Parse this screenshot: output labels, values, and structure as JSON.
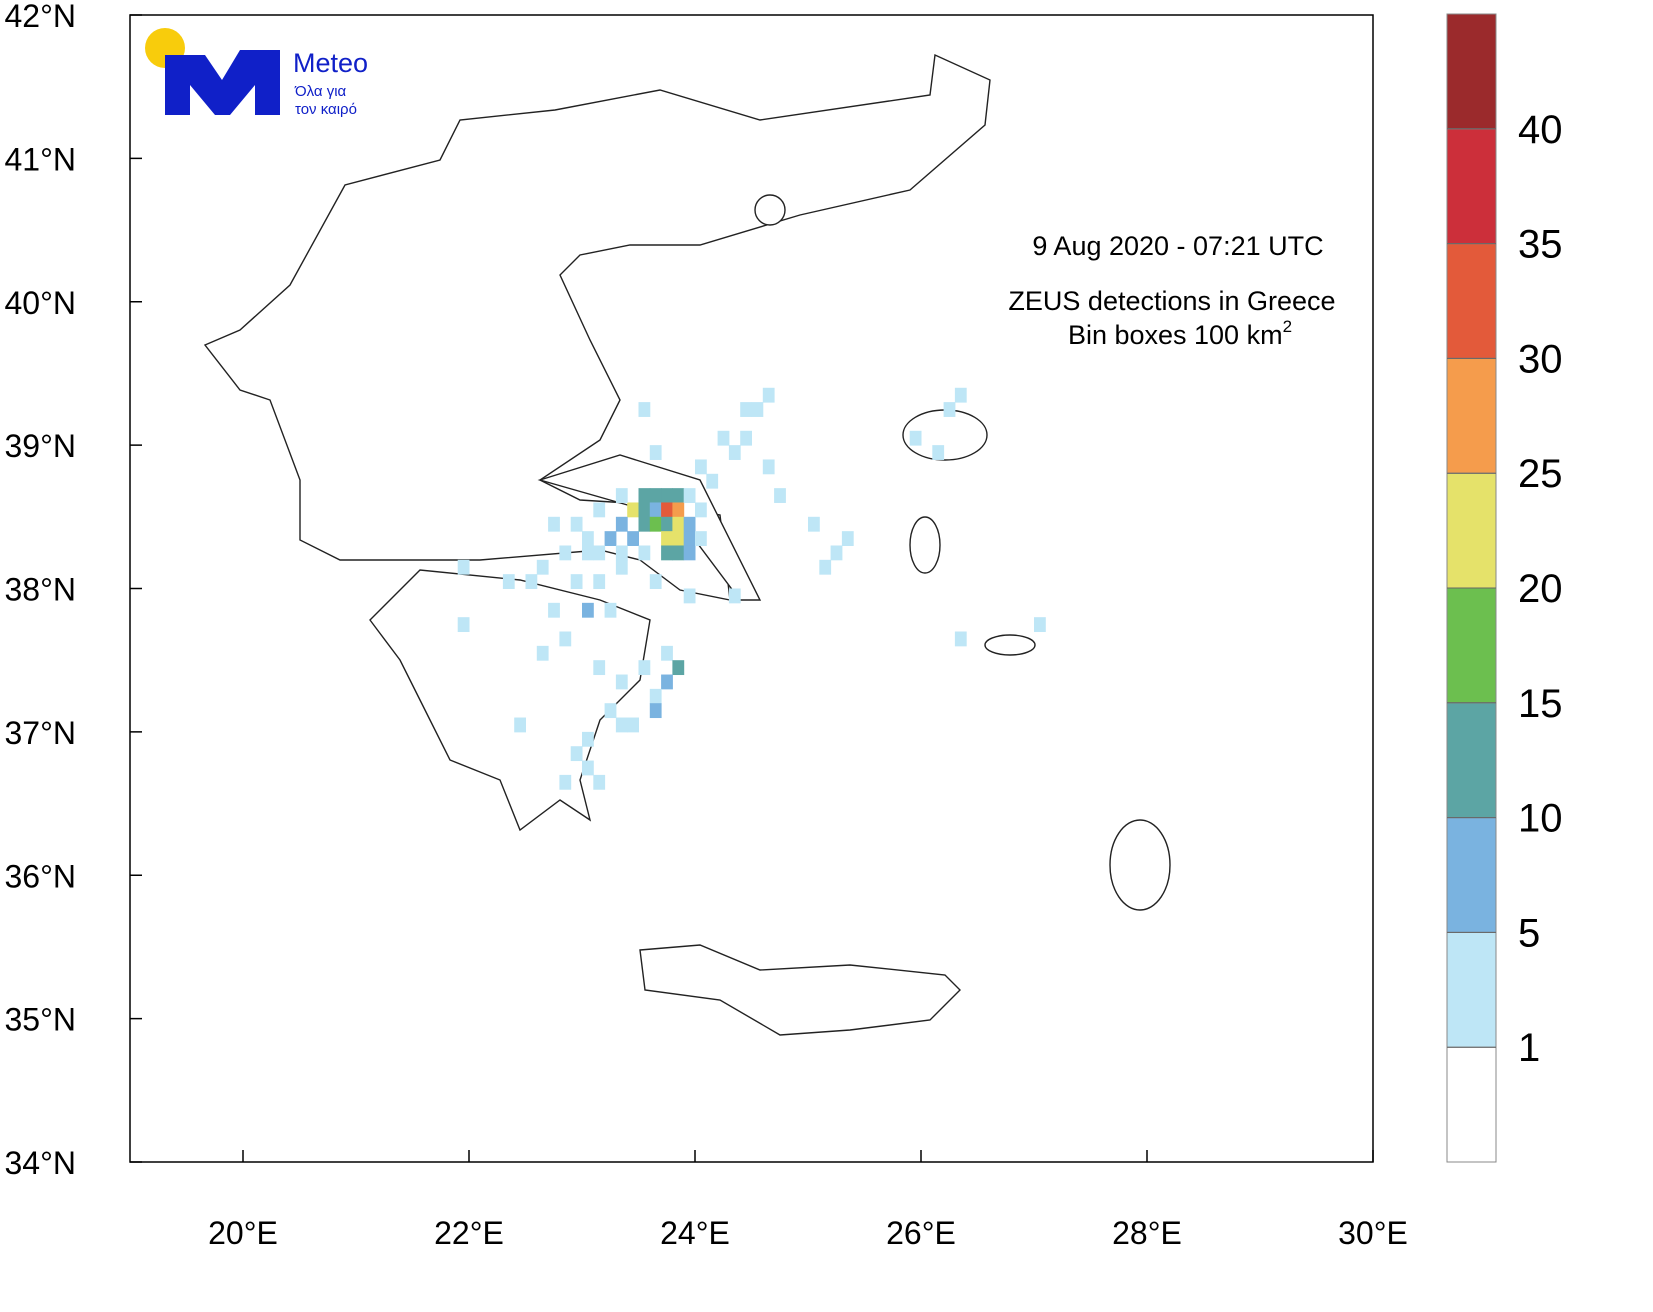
{
  "logo": {
    "brand": "Meteo",
    "tagline_1": "Όλα για",
    "tagline_2": "τον καιρό"
  },
  "map": {
    "time_label": "9  Aug 2020 - 07:21 UTC",
    "title": "ZEUS detections in Greece",
    "bin_label": "Bin boxes 100 km",
    "bin_power": "2",
    "xlim": [
      19,
      30
    ],
    "ylim": [
      34,
      42
    ],
    "xticks": [
      {
        "value": 20,
        "label": "20°E"
      },
      {
        "value": 22,
        "label": "22°E"
      },
      {
        "value": 24,
        "label": "24°E"
      },
      {
        "value": 26,
        "label": "26°E"
      },
      {
        "value": 28,
        "label": "28°E"
      },
      {
        "value": 30,
        "label": "30°E"
      }
    ],
    "yticks": [
      {
        "value": 34,
        "label": "34°N"
      },
      {
        "value": 35,
        "label": "35°N"
      },
      {
        "value": 36,
        "label": "36°N"
      },
      {
        "value": 37,
        "label": "37°N"
      },
      {
        "value": 38,
        "label": "38°N"
      },
      {
        "value": 39,
        "label": "39°N"
      },
      {
        "value": 40,
        "label": "40°N"
      },
      {
        "value": 41,
        "label": "41°N"
      },
      {
        "value": 42,
        "label": "42°N"
      }
    ],
    "levels": [
      1,
      5,
      10,
      15,
      20,
      25,
      30,
      35,
      40
    ],
    "colors": [
      "#ffffff",
      "#bee6f6",
      "#7ab3e0",
      "#5ca5a4",
      "#6cbf4f",
      "#e5e26a",
      "#f59c4c",
      "#e35a3a",
      "#cc2f3a",
      "#9b2a2c"
    ],
    "cells": [
      [
        23.5,
        38.6,
        12
      ],
      [
        23.6,
        38.6,
        12
      ],
      [
        23.7,
        38.6,
        12
      ],
      [
        23.8,
        38.6,
        12
      ],
      [
        23.4,
        38.5,
        22
      ],
      [
        23.5,
        38.5,
        12
      ],
      [
        23.6,
        38.5,
        6
      ],
      [
        23.7,
        38.5,
        32
      ],
      [
        23.8,
        38.5,
        27
      ],
      [
        23.3,
        38.4,
        6
      ],
      [
        23.5,
        38.4,
        12
      ],
      [
        23.6,
        38.4,
        17
      ],
      [
        23.7,
        38.4,
        12
      ],
      [
        23.8,
        38.4,
        22
      ],
      [
        23.9,
        38.4,
        6
      ],
      [
        23.2,
        38.3,
        6
      ],
      [
        23.4,
        38.3,
        6
      ],
      [
        23.7,
        38.3,
        22
      ],
      [
        23.8,
        38.3,
        22
      ],
      [
        23.9,
        38.3,
        6
      ],
      [
        23.7,
        38.2,
        12
      ],
      [
        23.8,
        38.2,
        12
      ],
      [
        23.9,
        38.2,
        6
      ],
      [
        23.3,
        38.6,
        2
      ],
      [
        23.9,
        38.6,
        2
      ],
      [
        24.0,
        38.5,
        2
      ],
      [
        23.1,
        38.5,
        2
      ],
      [
        22.9,
        38.4,
        2
      ],
      [
        22.7,
        38.4,
        2
      ],
      [
        23.0,
        38.3,
        2
      ],
      [
        22.8,
        38.2,
        2
      ],
      [
        23.0,
        38.2,
        2
      ],
      [
        23.1,
        38.2,
        2
      ],
      [
        23.3,
        38.2,
        2
      ],
      [
        23.5,
        38.2,
        2
      ],
      [
        24.0,
        38.3,
        2
      ],
      [
        22.6,
        38.1,
        2
      ],
      [
        22.9,
        38.0,
        2
      ],
      [
        23.1,
        38.0,
        2
      ],
      [
        23.3,
        38.1,
        2
      ],
      [
        23.6,
        38.0,
        2
      ],
      [
        23.9,
        37.9,
        2
      ],
      [
        22.3,
        38.0,
        2
      ],
      [
        22.5,
        38.0,
        2
      ],
      [
        22.7,
        37.8,
        2
      ],
      [
        23.0,
        37.8,
        6
      ],
      [
        23.2,
        37.8,
        2
      ],
      [
        22.8,
        37.6,
        2
      ],
      [
        22.6,
        37.5,
        2
      ],
      [
        23.1,
        37.4,
        2
      ],
      [
        23.3,
        37.3,
        2
      ],
      [
        23.5,
        37.4,
        2
      ],
      [
        23.7,
        37.5,
        2
      ],
      [
        23.8,
        37.4,
        12
      ],
      [
        23.7,
        37.3,
        6
      ],
      [
        23.6,
        37.2,
        2
      ],
      [
        23.6,
        37.1,
        6
      ],
      [
        23.2,
        37.1,
        2
      ],
      [
        23.3,
        37.0,
        2
      ],
      [
        23.4,
        37.0,
        2
      ],
      [
        23.0,
        36.9,
        2
      ],
      [
        22.9,
        36.8,
        2
      ],
      [
        23.0,
        36.7,
        2
      ],
      [
        23.1,
        36.6,
        2
      ],
      [
        22.8,
        36.6,
        2
      ],
      [
        21.9,
        38.1,
        2
      ],
      [
        21.9,
        37.7,
        2
      ],
      [
        22.4,
        37.0,
        2
      ],
      [
        24.0,
        38.8,
        2
      ],
      [
        24.2,
        39.0,
        2
      ],
      [
        24.4,
        39.0,
        2
      ],
      [
        24.5,
        39.2,
        2
      ],
      [
        24.6,
        39.3,
        2
      ],
      [
        24.4,
        39.2,
        2
      ],
      [
        24.3,
        38.9,
        2
      ],
      [
        24.6,
        38.8,
        2
      ],
      [
        24.7,
        38.6,
        2
      ],
      [
        24.1,
        38.7,
        2
      ],
      [
        23.6,
        38.9,
        2
      ],
      [
        23.5,
        39.2,
        2
      ],
      [
        25.0,
        38.4,
        2
      ],
      [
        25.3,
        38.3,
        2
      ],
      [
        25.2,
        38.2,
        2
      ],
      [
        25.1,
        38.1,
        2
      ],
      [
        25.9,
        39.0,
        2
      ],
      [
        26.1,
        38.9,
        2
      ],
      [
        26.3,
        39.3,
        2
      ],
      [
        26.2,
        39.2,
        2
      ],
      [
        27.0,
        37.7,
        2
      ],
      [
        26.3,
        37.6,
        2
      ],
      [
        24.3,
        37.9,
        2
      ]
    ]
  }
}
